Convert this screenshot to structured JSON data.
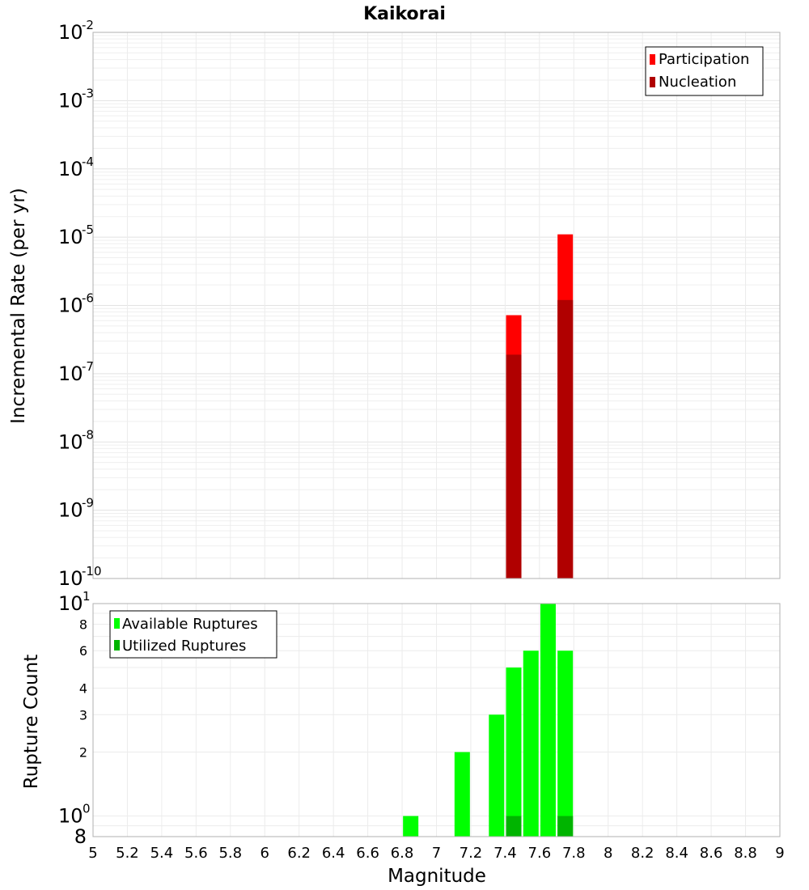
{
  "chart_data": [
    {
      "type": "bar",
      "title": "Kaikorai",
      "xlabel": "",
      "ylabel": "Incremental Rate (per yr)",
      "yscale": "log",
      "xlim": [
        5,
        9
      ],
      "ylim": [
        1e-10,
        0.01
      ],
      "ytick_exponents": [
        -2,
        -3,
        -4,
        -5,
        -6,
        -7,
        -8,
        -9,
        -10
      ],
      "grid": true,
      "legend_position": "top-right",
      "series": [
        {
          "name": "Participation",
          "color": "#ff0000",
          "x": [
            7.45,
            7.75
          ],
          "values": [
            7.2e-07,
            1.1e-05
          ]
        },
        {
          "name": "Nucleation",
          "color": "#b00000",
          "x": [
            7.45,
            7.75
          ],
          "values": [
            1.9e-07,
            1.2e-06
          ]
        }
      ]
    },
    {
      "type": "bar",
      "title": "",
      "xlabel": "Magnitude",
      "ylabel": "Rupture Count",
      "yscale": "log",
      "xlim": [
        5,
        9
      ],
      "ylim": [
        0.8,
        10
      ],
      "xticks": [
        "5",
        "5.2",
        "5.4",
        "5.6",
        "5.8",
        "6",
        "6.2",
        "6.4",
        "6.6",
        "6.8",
        "7",
        "7.2",
        "7.4",
        "7.6",
        "7.8",
        "8",
        "8.2",
        "8.4",
        "8.6",
        "8.8",
        "9"
      ],
      "ytick_labels_small": [
        "8",
        "6",
        "4",
        "3",
        "2"
      ],
      "ytick_labels_exp": [
        "1",
        "0"
      ],
      "ytick_bottom": "8",
      "grid": true,
      "legend_position": "top-left",
      "series": [
        {
          "name": "Available Ruptures",
          "color": "#00ff00",
          "x": [
            6.85,
            7.15,
            7.35,
            7.45,
            7.55,
            7.65,
            7.75
          ],
          "values": [
            1,
            2,
            3,
            5,
            6,
            10,
            6
          ]
        },
        {
          "name": "Utilized Ruptures",
          "color": "#00b400",
          "x": [
            7.45,
            7.75
          ],
          "values": [
            1,
            1
          ]
        }
      ]
    }
  ]
}
